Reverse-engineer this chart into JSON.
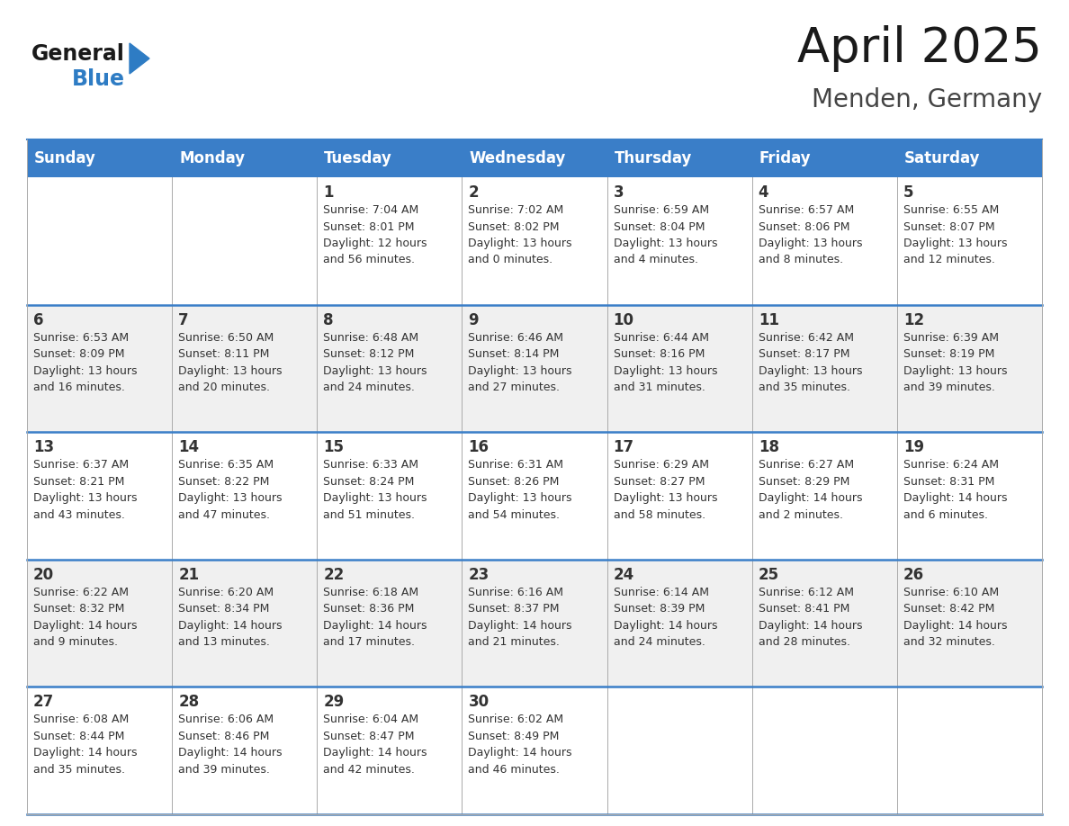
{
  "title": "April 2025",
  "subtitle": "Menden, Germany",
  "header_bg_color": "#3A7EC8",
  "header_text_color": "#FFFFFF",
  "row_bg_white": "#FFFFFF",
  "row_bg_gray": "#F0F0F0",
  "cell_text_color": "#333333",
  "border_color": "#AAAAAA",
  "week_separator_color": "#3A7EC8",
  "generalblue_dark_color": "#1A1A1A",
  "blue_text_color": "#2E7CC4",
  "days_of_week": [
    "Sunday",
    "Monday",
    "Tuesday",
    "Wednesday",
    "Thursday",
    "Friday",
    "Saturday"
  ],
  "weeks": [
    [
      {
        "day": 0,
        "text": ""
      },
      {
        "day": 0,
        "text": ""
      },
      {
        "day": 1,
        "text": "Sunrise: 7:04 AM\nSunset: 8:01 PM\nDaylight: 12 hours\nand 56 minutes."
      },
      {
        "day": 2,
        "text": "Sunrise: 7:02 AM\nSunset: 8:02 PM\nDaylight: 13 hours\nand 0 minutes."
      },
      {
        "day": 3,
        "text": "Sunrise: 6:59 AM\nSunset: 8:04 PM\nDaylight: 13 hours\nand 4 minutes."
      },
      {
        "day": 4,
        "text": "Sunrise: 6:57 AM\nSunset: 8:06 PM\nDaylight: 13 hours\nand 8 minutes."
      },
      {
        "day": 5,
        "text": "Sunrise: 6:55 AM\nSunset: 8:07 PM\nDaylight: 13 hours\nand 12 minutes."
      }
    ],
    [
      {
        "day": 6,
        "text": "Sunrise: 6:53 AM\nSunset: 8:09 PM\nDaylight: 13 hours\nand 16 minutes."
      },
      {
        "day": 7,
        "text": "Sunrise: 6:50 AM\nSunset: 8:11 PM\nDaylight: 13 hours\nand 20 minutes."
      },
      {
        "day": 8,
        "text": "Sunrise: 6:48 AM\nSunset: 8:12 PM\nDaylight: 13 hours\nand 24 minutes."
      },
      {
        "day": 9,
        "text": "Sunrise: 6:46 AM\nSunset: 8:14 PM\nDaylight: 13 hours\nand 27 minutes."
      },
      {
        "day": 10,
        "text": "Sunrise: 6:44 AM\nSunset: 8:16 PM\nDaylight: 13 hours\nand 31 minutes."
      },
      {
        "day": 11,
        "text": "Sunrise: 6:42 AM\nSunset: 8:17 PM\nDaylight: 13 hours\nand 35 minutes."
      },
      {
        "day": 12,
        "text": "Sunrise: 6:39 AM\nSunset: 8:19 PM\nDaylight: 13 hours\nand 39 minutes."
      }
    ],
    [
      {
        "day": 13,
        "text": "Sunrise: 6:37 AM\nSunset: 8:21 PM\nDaylight: 13 hours\nand 43 minutes."
      },
      {
        "day": 14,
        "text": "Sunrise: 6:35 AM\nSunset: 8:22 PM\nDaylight: 13 hours\nand 47 minutes."
      },
      {
        "day": 15,
        "text": "Sunrise: 6:33 AM\nSunset: 8:24 PM\nDaylight: 13 hours\nand 51 minutes."
      },
      {
        "day": 16,
        "text": "Sunrise: 6:31 AM\nSunset: 8:26 PM\nDaylight: 13 hours\nand 54 minutes."
      },
      {
        "day": 17,
        "text": "Sunrise: 6:29 AM\nSunset: 8:27 PM\nDaylight: 13 hours\nand 58 minutes."
      },
      {
        "day": 18,
        "text": "Sunrise: 6:27 AM\nSunset: 8:29 PM\nDaylight: 14 hours\nand 2 minutes."
      },
      {
        "day": 19,
        "text": "Sunrise: 6:24 AM\nSunset: 8:31 PM\nDaylight: 14 hours\nand 6 minutes."
      }
    ],
    [
      {
        "day": 20,
        "text": "Sunrise: 6:22 AM\nSunset: 8:32 PM\nDaylight: 14 hours\nand 9 minutes."
      },
      {
        "day": 21,
        "text": "Sunrise: 6:20 AM\nSunset: 8:34 PM\nDaylight: 14 hours\nand 13 minutes."
      },
      {
        "day": 22,
        "text": "Sunrise: 6:18 AM\nSunset: 8:36 PM\nDaylight: 14 hours\nand 17 minutes."
      },
      {
        "day": 23,
        "text": "Sunrise: 6:16 AM\nSunset: 8:37 PM\nDaylight: 14 hours\nand 21 minutes."
      },
      {
        "day": 24,
        "text": "Sunrise: 6:14 AM\nSunset: 8:39 PM\nDaylight: 14 hours\nand 24 minutes."
      },
      {
        "day": 25,
        "text": "Sunrise: 6:12 AM\nSunset: 8:41 PM\nDaylight: 14 hours\nand 28 minutes."
      },
      {
        "day": 26,
        "text": "Sunrise: 6:10 AM\nSunset: 8:42 PM\nDaylight: 14 hours\nand 32 minutes."
      }
    ],
    [
      {
        "day": 27,
        "text": "Sunrise: 6:08 AM\nSunset: 8:44 PM\nDaylight: 14 hours\nand 35 minutes."
      },
      {
        "day": 28,
        "text": "Sunrise: 6:06 AM\nSunset: 8:46 PM\nDaylight: 14 hours\nand 39 minutes."
      },
      {
        "day": 29,
        "text": "Sunrise: 6:04 AM\nSunset: 8:47 PM\nDaylight: 14 hours\nand 42 minutes."
      },
      {
        "day": 30,
        "text": "Sunrise: 6:02 AM\nSunset: 8:49 PM\nDaylight: 14 hours\nand 46 minutes."
      },
      {
        "day": 0,
        "text": ""
      },
      {
        "day": 0,
        "text": ""
      },
      {
        "day": 0,
        "text": ""
      }
    ]
  ]
}
